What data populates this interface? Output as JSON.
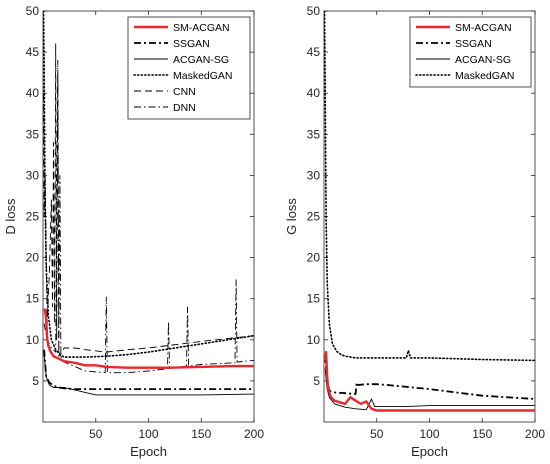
{
  "chart_data": [
    {
      "type": "line",
      "xlabel": "Epoch",
      "ylabel": "D loss",
      "xlim": [
        0,
        200
      ],
      "ylim": [
        0,
        50
      ],
      "xticks": [
        50,
        100,
        150,
        200
      ],
      "yticks": [
        5,
        10,
        15,
        20,
        25,
        30,
        35,
        40,
        45,
        50
      ],
      "grid": false,
      "legend_position": "top-right",
      "series": [
        {
          "name": "SM-ACGAN",
          "style": "solid",
          "color": "#e8282b",
          "width": 2.4,
          "x": [
            1,
            2,
            3,
            4,
            5,
            7,
            10,
            15,
            20,
            30,
            40,
            50,
            60,
            80,
            100,
            120,
            150,
            180,
            200
          ],
          "y": [
            13.8,
            13.5,
            12.5,
            10.2,
            9.3,
            8.6,
            8.0,
            7.7,
            7.4,
            7.2,
            6.9,
            6.9,
            6.7,
            6.6,
            6.6,
            6.6,
            6.7,
            6.8,
            6.8
          ]
        },
        {
          "name": "SSGAN",
          "style": "dashdot-bold",
          "color": "#000000",
          "width": 1.8,
          "x": [
            1,
            3,
            6,
            10,
            15,
            20,
            30,
            50,
            100,
            150,
            200
          ],
          "y": [
            8.8,
            5.5,
            4.8,
            4.4,
            4.2,
            4.1,
            4.0,
            4.0,
            4.0,
            4.0,
            4.0
          ]
        },
        {
          "name": "ACGAN-SG",
          "style": "solid-thin",
          "color": "#000000",
          "width": 0.9,
          "x": [
            1,
            3,
            6,
            10,
            20,
            30,
            40,
            50,
            70,
            100,
            150,
            200
          ],
          "y": [
            8.2,
            5.5,
            4.5,
            4.2,
            4.2,
            3.9,
            3.6,
            3.3,
            3.3,
            3.3,
            3.3,
            3.4
          ]
        },
        {
          "name": "MaskedGAN",
          "style": "dotted",
          "color": "#000000",
          "width": 1.6,
          "x": [
            0.5,
            1,
            1.5,
            2,
            3,
            5,
            8,
            12,
            16,
            20,
            40,
            60,
            80,
            100,
            150,
            200
          ],
          "y": [
            50,
            44,
            35,
            27,
            19,
            13,
            10,
            8.8,
            8.2,
            7.9,
            7.9,
            8.0,
            8.2,
            8.5,
            9.5,
            10.5
          ]
        },
        {
          "name": "CNN",
          "style": "dashed",
          "color": "#000000",
          "width": 0.9,
          "x": [
            0.5,
            1,
            2,
            4,
            6,
            8,
            9,
            10,
            11,
            12,
            13,
            14,
            15,
            16,
            18,
            20,
            30,
            40,
            60,
            80,
            100,
            150,
            200
          ],
          "y": [
            40,
            25,
            30,
            12,
            18,
            27,
            14,
            34,
            12,
            46,
            10,
            42,
            9,
            8,
            8.5,
            9.0,
            9.0,
            8.8,
            8.5,
            8.8,
            9.0,
            9.8,
            10.5
          ]
        },
        {
          "name": "DNN",
          "style": "dashdot",
          "color": "#000000",
          "width": 0.9,
          "x": [
            1,
            4,
            8,
            12,
            14,
            15,
            16,
            17,
            18,
            20,
            40,
            59,
            60,
            61,
            62,
            80,
            100,
            118,
            119,
            120,
            136,
            137,
            138,
            150,
            182,
            183,
            184,
            200
          ],
          "y": [
            12,
            10,
            9,
            8.5,
            44,
            8,
            30,
            8,
            7.5,
            7.3,
            6.2,
            6.0,
            15.2,
            6.0,
            6.0,
            6.0,
            6.2,
            6.5,
            12.2,
            6.5,
            6.8,
            14,
            6.8,
            7.0,
            7.2,
            17.3,
            7.3,
            7.5
          ]
        }
      ]
    },
    {
      "type": "line",
      "xlabel": "Epoch",
      "ylabel": "G loss",
      "xlim": [
        0,
        200
      ],
      "ylim": [
        0,
        50
      ],
      "xticks": [
        50,
        100,
        150,
        200
      ],
      "yticks": [
        5,
        10,
        15,
        20,
        25,
        30,
        35,
        40,
        45,
        50
      ],
      "grid": false,
      "legend_position": "top-right",
      "series": [
        {
          "name": "SM-ACGAN",
          "style": "solid",
          "color": "#e8282b",
          "width": 2.4,
          "x": [
            1,
            2,
            3,
            4,
            6,
            8,
            10,
            15,
            20,
            25,
            30,
            35,
            40,
            45,
            50,
            60,
            80,
            100,
            150,
            200
          ],
          "y": [
            7.5,
            8.5,
            5.5,
            4.0,
            3.2,
            2.8,
            2.6,
            2.4,
            2.2,
            3.0,
            2.6,
            2.2,
            2.5,
            1.6,
            1.4,
            1.4,
            1.4,
            1.4,
            1.4,
            1.4
          ]
        },
        {
          "name": "SSGAN",
          "style": "dashdot-bold",
          "color": "#000000",
          "width": 1.8,
          "x": [
            1,
            3,
            5,
            10,
            20,
            30,
            31,
            32,
            40,
            50,
            60,
            100,
            150,
            200
          ],
          "y": [
            8.0,
            5.0,
            3.8,
            3.6,
            3.5,
            3.4,
            4.8,
            4.5,
            4.6,
            4.6,
            4.5,
            4.0,
            3.2,
            2.8
          ]
        },
        {
          "name": "ACGAN-SG",
          "style": "solid-thin",
          "color": "#000000",
          "width": 0.9,
          "x": [
            1,
            3,
            5,
            10,
            20,
            30,
            40,
            45,
            48,
            50,
            60,
            80,
            100,
            150,
            200
          ],
          "y": [
            6.5,
            4.0,
            3.0,
            2.2,
            1.8,
            1.6,
            1.5,
            2.8,
            1.9,
            1.9,
            1.9,
            1.9,
            2.0,
            2.0,
            2.0
          ]
        },
        {
          "name": "MaskedGAN",
          "style": "dotted",
          "color": "#000000",
          "width": 1.6,
          "x": [
            0.5,
            1,
            1.5,
            2,
            3,
            5,
            8,
            12,
            16,
            20,
            30,
            50,
            78,
            80,
            82,
            100,
            150,
            200
          ],
          "y": [
            50,
            42,
            33,
            25,
            17,
            12,
            9.5,
            8.6,
            8.2,
            8.0,
            7.8,
            7.8,
            7.8,
            8.7,
            7.8,
            7.8,
            7.6,
            7.5
          ]
        }
      ]
    }
  ]
}
